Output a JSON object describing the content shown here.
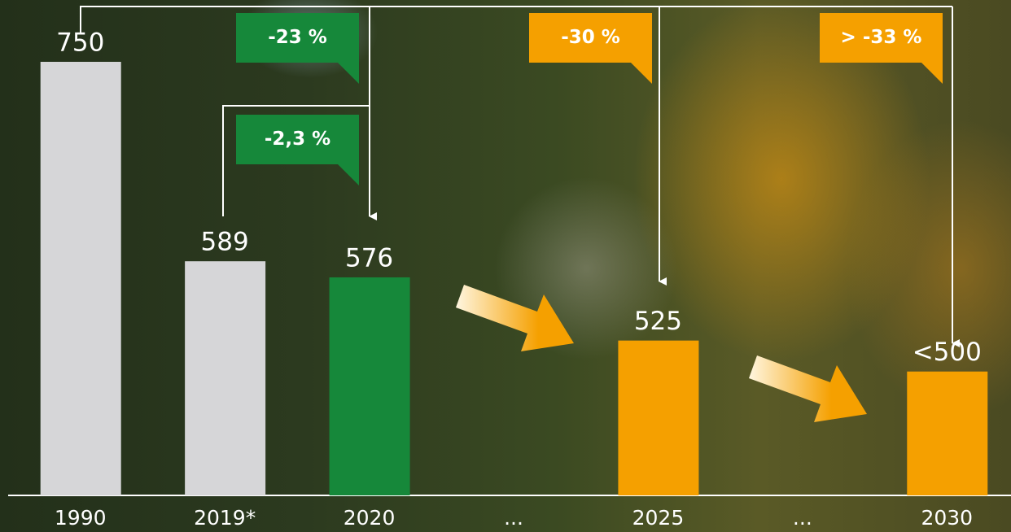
{
  "chart_data": {
    "type": "bar",
    "categories": [
      "1990",
      "2019*",
      "2020",
      "...",
      "2025",
      "...",
      "2030"
    ],
    "values": [
      750,
      589,
      576,
      null,
      525,
      null,
      500
    ],
    "value_labels": [
      "750",
      "589",
      "576",
      null,
      "525",
      null,
      "<500"
    ],
    "colors": [
      "#d6d6d8",
      "#d6d6d8",
      "#16883a",
      null,
      "#f5a000",
      null,
      "#f5a000"
    ],
    "ylim": [
      400,
      750
    ],
    "annotations": [
      {
        "text": "-23 %",
        "color": "#16883a"
      },
      {
        "text": "-2,3 %",
        "color": "#16883a"
      },
      {
        "text": "-30 %",
        "color": "#f5a000"
      },
      {
        "text": "> -33 %",
        "color": "#f5a000"
      }
    ]
  }
}
